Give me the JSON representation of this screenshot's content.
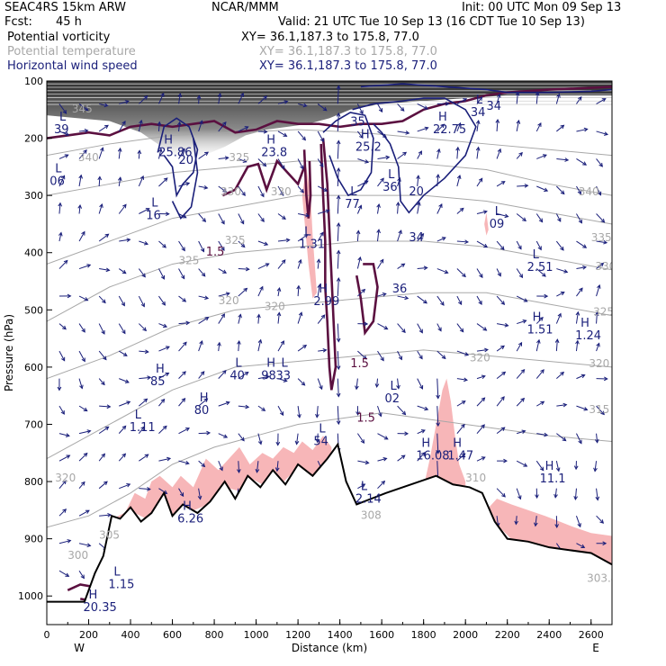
{
  "header": {
    "model": "SEAC4RS 15km ARW",
    "center": "NCAR/MMM",
    "init": "Init: 00 UTC Mon 09 Sep 13",
    "fcst_label": "Fcst:",
    "fcst_value": "45 h",
    "valid": "Valid: 21 UTC Tue 10 Sep 13 (16 CDT Tue 10 Sep 13)",
    "fields": [
      {
        "name": "Potential vorticity",
        "xy": "XY=  36.1,187.3 to 175.8, 77.0",
        "color": "#000000"
      },
      {
        "name": "Potential temperature",
        "xy": "XY=  36.1,187.3 to 175.8, 77.0",
        "color": "#a8a8a8"
      },
      {
        "name": "Horizontal wind speed",
        "xy": "XY=  36.1,187.3 to 175.8, 77.0",
        "color": "#1a1f7a"
      }
    ]
  },
  "chart_data": {
    "type": "cross-section",
    "xlabel": "Distance (km)",
    "ylabel": "Pressure (hPa)",
    "xlim": [
      0,
      2700
    ],
    "ylim": [
      1050,
      100
    ],
    "x_ticks": [
      "0",
      "200",
      "400",
      "600",
      "800",
      "1000",
      "1200",
      "1400",
      "1600",
      "1800",
      "2000",
      "2200",
      "2400",
      "2600"
    ],
    "y_ticks": [
      "100",
      "200",
      "300",
      "400",
      "500",
      "600",
      "700",
      "800",
      "900",
      "1000"
    ],
    "x_end_labels": {
      "left": "W",
      "right": "E"
    },
    "terrain": [
      [
        0,
        1010
      ],
      [
        180,
        1010
      ],
      [
        230,
        960
      ],
      [
        270,
        930
      ],
      [
        310,
        860
      ],
      [
        350,
        865
      ],
      [
        400,
        845
      ],
      [
        450,
        870
      ],
      [
        500,
        855
      ],
      [
        560,
        820
      ],
      [
        600,
        860
      ],
      [
        650,
        840
      ],
      [
        720,
        855
      ],
      [
        780,
        835
      ],
      [
        850,
        800
      ],
      [
        900,
        830
      ],
      [
        960,
        790
      ],
      [
        1020,
        810
      ],
      [
        1080,
        780
      ],
      [
        1140,
        805
      ],
      [
        1200,
        770
      ],
      [
        1270,
        790
      ],
      [
        1340,
        760
      ],
      [
        1390,
        735
      ],
      [
        1430,
        800
      ],
      [
        1480,
        840
      ],
      [
        1550,
        830
      ],
      [
        1620,
        820
      ],
      [
        1700,
        810
      ],
      [
        1780,
        800
      ],
      [
        1860,
        790
      ],
      [
        1940,
        805
      ],
      [
        2020,
        810
      ],
      [
        2080,
        820
      ],
      [
        2140,
        870
      ],
      [
        2200,
        900
      ],
      [
        2300,
        905
      ],
      [
        2400,
        915
      ],
      [
        2500,
        920
      ],
      [
        2600,
        925
      ],
      [
        2700,
        945
      ]
    ],
    "colors": {
      "wind": "#1a1f7a",
      "pv": "#5b1040",
      "theta": "#a8a8a8",
      "shade": "#f7b6b8"
    },
    "theta_labels": [
      {
        "x": 120,
        "p": 155,
        "text": "345"
      },
      {
        "x": 150,
        "p": 240,
        "text": "340"
      },
      {
        "x": 870,
        "p": 240,
        "text": "325"
      },
      {
        "x": 830,
        "p": 300,
        "text": "330"
      },
      {
        "x": 1070,
        "p": 300,
        "text": "330"
      },
      {
        "x": 850,
        "p": 385,
        "text": "325"
      },
      {
        "x": 630,
        "p": 420,
        "text": "325"
      },
      {
        "x": 820,
        "p": 490,
        "text": "320"
      },
      {
        "x": 1040,
        "p": 500,
        "text": "320"
      },
      {
        "x": 2540,
        "p": 300,
        "text": "340"
      },
      {
        "x": 2600,
        "p": 380,
        "text": "335"
      },
      {
        "x": 2620,
        "p": 430,
        "text": "330"
      },
      {
        "x": 2610,
        "p": 510,
        "text": "325"
      },
      {
        "x": 2590,
        "p": 600,
        "text": "320"
      },
      {
        "x": 2590,
        "p": 680,
        "text": "315"
      },
      {
        "x": 2020,
        "p": 590,
        "text": "320"
      },
      {
        "x": 2000,
        "p": 800,
        "text": "310"
      },
      {
        "x": 250,
        "p": 900,
        "text": "305"
      },
      {
        "x": 100,
        "p": 935,
        "text": "300"
      },
      {
        "x": 40,
        "p": 800,
        "text": "320"
      },
      {
        "x": 1500,
        "p": 865,
        "text": "308"
      },
      {
        "x": 2580,
        "p": 975,
        "text": "303.4"
      }
    ],
    "wind_labels": [
      {
        "x": 1450,
        "p": 178,
        "text": "35"
      },
      {
        "x": 630,
        "p": 245,
        "text": "20"
      },
      {
        "x": 1730,
        "p": 300,
        "text": "20"
      },
      {
        "x": 1730,
        "p": 380,
        "text": "34"
      },
      {
        "x": 1650,
        "p": 470,
        "text": "36"
      },
      {
        "x": 2100,
        "p": 150,
        "text": "34"
      }
    ],
    "pv_labels": [
      {
        "x": 760,
        "p": 405,
        "text": "1.5"
      },
      {
        "x": 1450,
        "p": 600,
        "text": "1.5"
      },
      {
        "x": 1480,
        "p": 695,
        "text": "1.5"
      }
    ],
    "extrema": [
      {
        "x": 60,
        "p": 190,
        "type": "L",
        "value": "39"
      },
      {
        "x": 40,
        "p": 280,
        "type": "L",
        "value": "06"
      },
      {
        "x": 500,
        "p": 340,
        "type": "L",
        "value": "16"
      },
      {
        "x": 560,
        "p": 230,
        "type": "H",
        "value": "25.86"
      },
      {
        "x": 1050,
        "p": 230,
        "type": "H",
        "value": "23.8"
      },
      {
        "x": 1500,
        "p": 220,
        "type": "H",
        "value": "25.2"
      },
      {
        "x": 1630,
        "p": 290,
        "type": "L",
        "value": "36"
      },
      {
        "x": 1870,
        "p": 190,
        "type": "H",
        "value": "22.75"
      },
      {
        "x": 2050,
        "p": 160,
        "type": "L",
        "value": "34"
      },
      {
        "x": 2140,
        "p": 355,
        "type": "L",
        "value": "09"
      },
      {
        "x": 2320,
        "p": 430,
        "type": "L",
        "value": "2.51"
      },
      {
        "x": 2320,
        "p": 540,
        "type": "H",
        "value": "1.51"
      },
      {
        "x": 2550,
        "p": 550,
        "type": "H",
        "value": "1.24"
      },
      {
        "x": 1300,
        "p": 490,
        "type": "H",
        "value": "2.99"
      },
      {
        "x": 1230,
        "p": 390,
        "type": "L",
        "value": "1.31"
      },
      {
        "x": 1450,
        "p": 320,
        "type": "L",
        "value": "77"
      },
      {
        "x": 520,
        "p": 630,
        "type": "H",
        "value": "85"
      },
      {
        "x": 420,
        "p": 710,
        "type": "L",
        "value": "1.11"
      },
      {
        "x": 730,
        "p": 680,
        "type": "H",
        "value": "80"
      },
      {
        "x": 900,
        "p": 620,
        "type": "L",
        "value": "40"
      },
      {
        "x": 1050,
        "p": 620,
        "type": "H",
        "value": "98"
      },
      {
        "x": 1120,
        "p": 620,
        "type": "L",
        "value": "33"
      },
      {
        "x": 1300,
        "p": 735,
        "type": "L",
        "value": "54"
      },
      {
        "x": 1640,
        "p": 660,
        "type": "L",
        "value": "02"
      },
      {
        "x": 1790,
        "p": 760,
        "type": "H",
        "value": "16.08"
      },
      {
        "x": 1940,
        "p": 760,
        "type": "H",
        "value": "1.47"
      },
      {
        "x": 2380,
        "p": 800,
        "type": "H",
        "value": "11.1"
      },
      {
        "x": 1500,
        "p": 835,
        "type": "L",
        "value": "2.14"
      },
      {
        "x": 650,
        "p": 870,
        "type": "H",
        "value": "6.26"
      },
      {
        "x": 320,
        "p": 985,
        "type": "L",
        "value": "1.15"
      },
      {
        "x": 200,
        "p": 1025,
        "type": "H",
        "value": "20.35"
      }
    ]
  }
}
